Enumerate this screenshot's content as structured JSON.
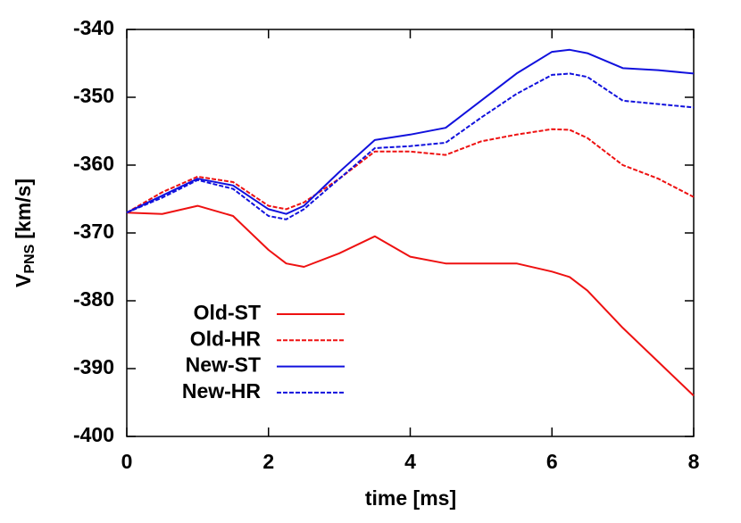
{
  "chart_data": {
    "type": "line",
    "xlabel": "time [ms]",
    "ylabel_parts": [
      "V",
      "PNS",
      "[km/s]"
    ],
    "x": [
      0,
      0.5,
      1,
      1.5,
      2,
      2.25,
      2.5,
      3,
      3.5,
      4,
      4.5,
      5,
      5.5,
      6,
      6.25,
      6.5,
      7,
      7.5,
      8
    ],
    "series": [
      {
        "name": "Old-ST",
        "color": "#ee1111",
        "dash": false,
        "values": [
          -367,
          -367.2,
          -366,
          -367.5,
          -372.5,
          -374.5,
          -375,
          -373,
          -370.5,
          -373.5,
          -374.5,
          -374.5,
          -374.5,
          -375.7,
          -376.5,
          -378.5,
          -384,
          -389,
          -394
        ]
      },
      {
        "name": "Old-HR",
        "color": "#ee1111",
        "dash": true,
        "values": [
          -367,
          -364,
          -361.7,
          -362.5,
          -366,
          -366.5,
          -365.5,
          -362,
          -358,
          -358,
          -358.5,
          -356.5,
          -355.5,
          -354.7,
          -354.8,
          -356,
          -360,
          -362,
          -364.7
        ]
      },
      {
        "name": "New-ST",
        "color": "#1111dd",
        "dash": false,
        "values": [
          -367,
          -364.5,
          -362,
          -363,
          -366.5,
          -367.2,
          -366,
          -361,
          -356.3,
          -355.5,
          -354.5,
          -350.5,
          -346.5,
          -343.3,
          -343,
          -343.5,
          -345.7,
          -346,
          -346.5
        ]
      },
      {
        "name": "New-HR",
        "color": "#1111dd",
        "dash": true,
        "values": [
          -367,
          -364.8,
          -362.2,
          -363.5,
          -367.5,
          -368,
          -366.5,
          -362,
          -357.5,
          -357.2,
          -356.7,
          -353,
          -349.5,
          -346.7,
          -346.5,
          -347,
          -350.5,
          -351,
          -351.5
        ]
      }
    ],
    "xlim": [
      0,
      8
    ],
    "xticks": [
      0,
      2,
      4,
      6,
      8
    ],
    "ylim": [
      -400,
      -340
    ],
    "yticks": [
      -400,
      -390,
      -380,
      -370,
      -360,
      -350,
      -340
    ],
    "legend": "lower-left",
    "grid": false
  }
}
